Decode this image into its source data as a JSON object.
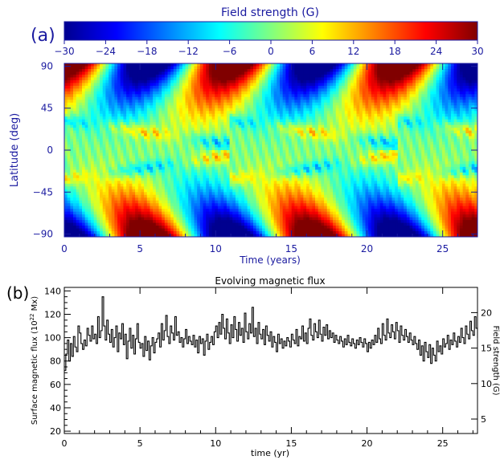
{
  "chart_data": [
    {
      "type": "heatmap",
      "panel_label": "(a)",
      "colorbar": {
        "title": "Field strength (G)",
        "range": [
          -30,
          30
        ],
        "ticks": [
          "−30",
          "−24",
          "−18",
          "−12",
          "−6",
          "0",
          "6",
          "12",
          "18",
          "24",
          "30"
        ],
        "colormap": [
          "#00008f",
          "#0000ff",
          "#0080ff",
          "#00ffff",
          "#80ff80",
          "#ffff00",
          "#ff8000",
          "#ff0000",
          "#800000"
        ]
      },
      "xlabel": "Time (years)",
      "ylabel": "Latitude (deg)",
      "xlim": [
        0,
        27.3
      ],
      "ylim": [
        -93,
        93
      ],
      "x_ticks": [
        0,
        5,
        10,
        15,
        20,
        25
      ],
      "y_ticks": [
        {
          "value": 90,
          "label": "90"
        },
        {
          "value": 45,
          "label": "45"
        },
        {
          "value": 0,
          "label": "0"
        },
        {
          "value": -45,
          "label": "−45"
        },
        {
          "value": -90,
          "label": "−90"
        }
      ],
      "polar_field_pattern": {
        "cycle_period_yr": 11,
        "north_positive_peaks_yr": [
          0.0,
          11.0,
          22.0
        ],
        "north_negative_peaks_yr": [
          5.5,
          16.5
        ],
        "peak_amplitude_G": 30
      }
    },
    {
      "type": "line",
      "panel_label": "(b)",
      "title": "Evolving magnetic flux",
      "xlabel": "time (yr)",
      "ylabel_left_main": "Surface magnetic flux (10",
      "ylabel_left_sup": "22",
      "ylabel_left_tail": " Mx)",
      "ylabel_right": "Field strength (G)",
      "xlim": [
        0,
        27.3
      ],
      "ylim": [
        18,
        143
      ],
      "x_ticks": [
        0,
        5,
        10,
        15,
        20,
        25
      ],
      "y_ticks": [
        20,
        40,
        60,
        80,
        100,
        120,
        140
      ],
      "y2_ticks": [
        5,
        10,
        15,
        20
      ],
      "y2_per_flux_unit": 0.1647,
      "series": [
        {
          "x_start": 0.0,
          "x_step": 0.1,
          "values": [
            72,
            86,
            98,
            80,
            95,
            84,
            101,
            92,
            88,
            110,
            104,
            95,
            90,
            98,
            93,
            108,
            102,
            97,
            110,
            99,
            103,
            95,
            118,
            100,
            106,
            135,
            110,
            98,
            115,
            103,
            96,
            107,
            92,
            100,
            110,
            88,
            104,
            99,
            112,
            94,
            103,
            82,
            97,
            108,
            91,
            102,
            86,
            99,
            112,
            96,
            91,
            95,
            84,
            101,
            89,
            97,
            81,
            93,
            100,
            87,
            96,
            99,
            104,
            92,
            112,
            98,
            106,
            119,
            101,
            95,
            110,
            104,
            98,
            118,
            102,
            105,
            96,
            100,
            92,
            99,
            107,
            95,
            101,
            97,
            94,
            102,
            92,
            98,
            87,
            101,
            95,
            99,
            85,
            97,
            103,
            90,
            96,
            101,
            94,
            105,
            110,
            100,
            113,
            103,
            120,
            108,
            99,
            116,
            104,
            95,
            111,
            100,
            118,
            107,
            97,
            113,
            102,
            108,
            96,
            121,
            105,
            99,
            112,
            104,
            126,
            101,
            108,
            95,
            113,
            103,
            99,
            107,
            94,
            110,
            102,
            97,
            105,
            92,
            101,
            96,
            88,
            103,
            95,
            99,
            91,
            97,
            93,
            100,
            97,
            92,
            103,
            98,
            95,
            107,
            93,
            101,
            99,
            110,
            97,
            104,
            95,
            108,
            116,
            102,
            98,
            112,
            105,
            100,
            115,
            103,
            97,
            109,
            102,
            111,
            99,
            106,
            100,
            104,
            96,
            102,
            98,
            95,
            101,
            97,
            92,
            99,
            94,
            102,
            96,
            93,
            99,
            95,
            91,
            98,
            94,
            100,
            96,
            92,
            99,
            95,
            88,
            96,
            91,
            98,
            94,
            102,
            96,
            108,
            99,
            95,
            112,
            102,
            98,
            116,
            104,
            100,
            111,
            105,
            99,
            113,
            106,
            96,
            110,
            102,
            98,
            107,
            101,
            96,
            104,
            98,
            94,
            101,
            95,
            90,
            98,
            85,
            93,
            80,
            96,
            88,
            83,
            94,
            78,
            91,
            85,
            80,
            97,
            88,
            93,
            86,
            99,
            92,
            95,
            102,
            90,
            98,
            94,
            104,
            97,
            92,
            101,
            96,
            108,
            100,
            95,
            110,
            103,
            99,
            114,
            106,
            102,
            118,
            108,
            100,
            112,
            104,
            110,
            98,
            106,
            101,
            96,
            104,
            99,
            94,
            102,
            97,
            91,
            100
          ]
        }
      ]
    }
  ]
}
